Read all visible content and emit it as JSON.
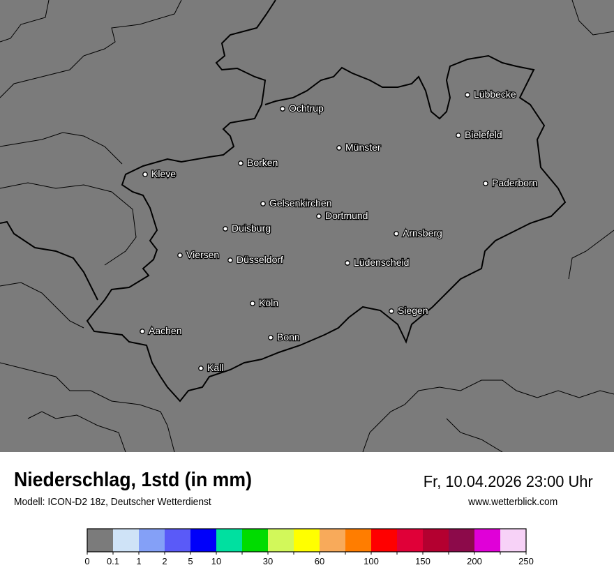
{
  "header": {
    "title": "Niederschlag, 1std (in mm)",
    "subtitle": "Modell: ICON-D2 18z, Deutscher Wetterdienst",
    "datetime": "Fr, 10.04.2026 23:00 Uhr",
    "website": "www.wetterblick.com"
  },
  "map": {
    "background_color": "#7b7b7b",
    "cities": [
      {
        "name": "Lübbecke"
      },
      {
        "name": "Ochtrup"
      },
      {
        "name": "Bielefeld"
      },
      {
        "name": "Münster"
      },
      {
        "name": "Borken"
      },
      {
        "name": "Kleve"
      },
      {
        "name": "Paderborn"
      },
      {
        "name": "Gelsenkirchen"
      },
      {
        "name": "Dortmund"
      },
      {
        "name": "Duisburg"
      },
      {
        "name": "Arnsberg"
      },
      {
        "name": "Viersen"
      },
      {
        "name": "Düsseldorf"
      },
      {
        "name": "Lüdenscheid"
      },
      {
        "name": "Köln"
      },
      {
        "name": "Siegen"
      },
      {
        "name": "Aachen"
      },
      {
        "name": "Bonn"
      },
      {
        "name": "Kall"
      }
    ]
  },
  "legend": {
    "colors": [
      "#7b7b7b",
      "#cfe3f7",
      "#84a0f7",
      "#5a5af8",
      "#0000fa",
      "#00e0a0",
      "#00dc00",
      "#d2f85a",
      "#ffff00",
      "#f8aa5a",
      "#ff7d00",
      "#ff0000",
      "#e00038",
      "#b40030",
      "#8c0a4a",
      "#e000d8",
      "#f7d2f7"
    ],
    "tick_labels": [
      "0",
      "0.1",
      "1",
      "2",
      "5",
      "10",
      "",
      "30",
      "",
      "60",
      "",
      "100",
      "",
      "150",
      "",
      "200",
      "",
      "250"
    ]
  }
}
